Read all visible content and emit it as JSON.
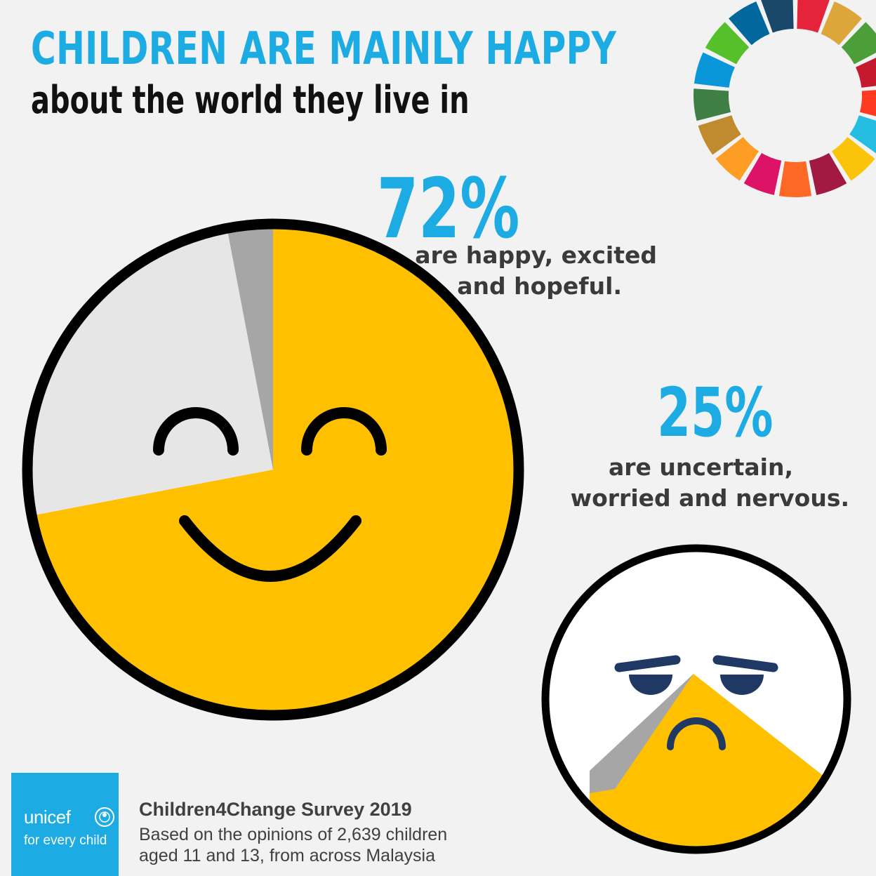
{
  "header": {
    "title": "CHILDREN ARE MAINLY HAPPY",
    "subtitle": "about the world they live in"
  },
  "stats": {
    "happy": {
      "percent": "72%",
      "line1": "are happy, excited",
      "line2": "and hopeful."
    },
    "worried": {
      "percent": "25%",
      "line1": "are uncertain,",
      "line2": "worried and nervous."
    }
  },
  "source": {
    "title": "Children4Change Survey 2019",
    "line1": "Based on the opinions of 2,639 children",
    "line2": "aged 11 and 13, from across Malaysia"
  },
  "logo": {
    "word": "unicef",
    "tagline": "for every child"
  },
  "colors": {
    "accent": "#1cabe2",
    "happy_yellow": "#ffc000",
    "face_white": "#e7e6e6",
    "sliver_gray": "#a6a6a6",
    "outline": "#000000",
    "sad_eyes": "#1f3864"
  },
  "chart_data": {
    "type": "pie",
    "categories": [
      "happy, excited and hopeful",
      "uncertain, worried and nervous",
      "other"
    ],
    "values": [
      72,
      25,
      3
    ],
    "units": "%",
    "colors": [
      "#ffc000",
      "#e7e6e6",
      "#a6a6a6"
    ]
  }
}
